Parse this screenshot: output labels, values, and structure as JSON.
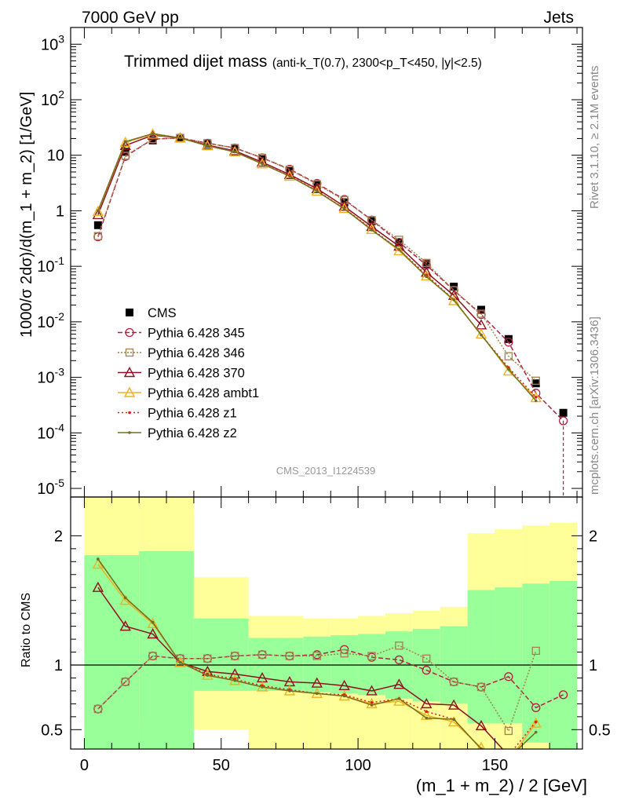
{
  "header": {
    "left": "7000 GeV pp",
    "right": "Jets"
  },
  "side_labels": {
    "rivet": "Rivet 3.1.10, ≥ 2.1M events",
    "mcplots": "mcplots.cern.ch [arXiv:1306.3436]"
  },
  "chart_data": [
    {
      "type": "scatter",
      "title_main": "Trimmed dijet mass",
      "title_sub": "(anti-k_T(0.7), 2300<p_T<450, |y|<2.5)",
      "ylabel": "1000/σ 2dσ)/d(m_1 + m_2) [1/GeV]",
      "xlabel": "(m_1 + m_2) / 2 [GeV]",
      "watermark": "CMS_2013_I1224539",
      "xlim": [
        -5,
        182
      ],
      "ylim": [
        7e-06,
        2000
      ],
      "log_y": true,
      "y_ticks": [
        "10^-5",
        "10^-4",
        "10^-3",
        "10^-2",
        "10^-1",
        "1",
        "10",
        "10^2",
        "10^3"
      ],
      "x": [
        5,
        15,
        25,
        35,
        45,
        55,
        65,
        75,
        85,
        95,
        105,
        115,
        125,
        135,
        145,
        155,
        165,
        175
      ],
      "series": [
        {
          "name": "CMS",
          "color": "#000000",
          "marker": "square",
          "dash": "none",
          "values": [
            0.55,
            11.5,
            18.5,
            20,
            16,
            13,
            8.5,
            5.2,
            2.9,
            1.42,
            0.65,
            0.27,
            0.11,
            0.043,
            0.0165,
            0.0049,
            0.00078,
            0.00023
          ]
        },
        {
          "name": "Pythia 6.428 345",
          "color": "#b02040",
          "marker": "circle",
          "dash": "6,3",
          "values": [
            0.34,
            9.5,
            19.5,
            20.5,
            16.5,
            13.5,
            9,
            5.6,
            3.1,
            1.6,
            0.68,
            0.27,
            0.105,
            0.037,
            0.0135,
            0.0043,
            0.00052,
            0.000165
          ]
        },
        {
          "name": "Pythia 6.428 346",
          "color": "#a08050",
          "marker": "square-open",
          "dash": "2,2",
          "values": [
            0.35,
            9.8,
            19.5,
            20.5,
            16.5,
            13.5,
            9,
            5.5,
            3.0,
            1.55,
            0.68,
            0.3,
            0.115,
            0.037,
            0.014,
            0.0024,
            0.00087,
            null
          ]
        },
        {
          "name": "Pythia 6.428 370",
          "color": "#901020",
          "marker": "triangle",
          "dash": "none",
          "values": [
            0.85,
            15,
            23,
            20.5,
            15.2,
            12,
            7.5,
            4.5,
            2.5,
            1.2,
            0.52,
            0.23,
            0.078,
            0.03,
            0.0088,
            null,
            null,
            null
          ]
        },
        {
          "name": "Pythia 6.428 ambt1",
          "color": "#f0b020",
          "marker": "triangle-open",
          "dash": "none",
          "values": [
            0.97,
            17,
            24,
            20.5,
            14.8,
            11.5,
            7.0,
            4.2,
            2.25,
            1.1,
            0.46,
            0.19,
            0.067,
            0.024,
            0.006,
            0.0013,
            0.00043,
            null
          ]
        },
        {
          "name": "Pythia 6.428 z1",
          "color": "#e02020",
          "marker": "dot",
          "dash": "2,3",
          "values": [
            1.0,
            17.5,
            24.5,
            20.5,
            14.8,
            11.5,
            7.0,
            4.3,
            2.3,
            1.1,
            0.47,
            0.2,
            0.07,
            0.025,
            0.0058,
            0.0015,
            0.00044,
            null
          ]
        },
        {
          "name": "Pythia 6.428 z2",
          "color": "#707020",
          "marker": "dot",
          "dash": "none",
          "values": [
            1.0,
            17.5,
            24.5,
            20.5,
            14.8,
            11.5,
            7.0,
            4.2,
            2.25,
            1.08,
            0.45,
            0.2,
            0.065,
            0.025,
            0.0058,
            0.0014,
            0.00038,
            null
          ]
        }
      ]
    },
    {
      "type": "line",
      "ylabel": "Ratio to CMS",
      "xlim": [
        -5,
        182
      ],
      "ylim": [
        0.35,
        2.3
      ],
      "x_ticks": [
        0,
        50,
        100,
        150
      ],
      "y_ticks": [
        0.5,
        1,
        2
      ],
      "bands": {
        "edges": [
          0,
          20,
          40,
          60,
          80,
          90,
          100,
          110,
          120,
          130,
          140,
          150,
          160,
          170,
          180
        ],
        "green_low": [
          0.35,
          0.35,
          0.8,
          0.8,
          0.79,
          0.78,
          0.77,
          0.74,
          0.72,
          0.7,
          0.55,
          0.55,
          0.4,
          0.35
        ],
        "green_high": [
          1.85,
          1.88,
          1.36,
          1.21,
          1.22,
          1.23,
          1.24,
          1.26,
          1.28,
          1.3,
          1.58,
          1.6,
          1.63,
          1.65
        ],
        "yellow_low": [
          0.35,
          0.58,
          0.5,
          0.35,
          0.35,
          0.35,
          0.35,
          0.35,
          0.35,
          0.35,
          0.35,
          0.35,
          0.35,
          0.35
        ],
        "yellow_high": [
          2.3,
          2.3,
          1.68,
          1.38,
          1.36,
          1.36,
          1.38,
          1.4,
          1.42,
          1.45,
          2.02,
          2.05,
          2.08,
          2.1
        ]
      },
      "series": [
        {
          "name": "Pythia 6.428 345",
          "values": [
            0.66,
            0.87,
            1.07,
            1.05,
            1.05,
            1.07,
            1.08,
            1.07,
            1.08,
            1.12,
            1.06,
            1.04,
            0.96,
            0.87,
            0.83,
            0.91,
            0.67,
            0.77
          ]
        },
        {
          "name": "Pythia 6.428 346",
          "values": [
            0.66,
            0.87,
            1.07,
            1.05,
            1.05,
            1.07,
            1.08,
            1.07,
            1.07,
            1.09,
            1.07,
            1.15,
            1.05,
            0.87,
            0.83,
            0.49,
            1.11,
            null
          ]
        },
        {
          "name": "Pythia 6.428 370",
          "values": [
            1.6,
            1.3,
            1.24,
            1.02,
            0.95,
            0.93,
            0.9,
            0.87,
            0.86,
            0.84,
            0.8,
            0.85,
            0.7,
            0.69,
            0.53,
            0.3,
            null,
            null
          ]
        },
        {
          "name": "Pythia 6.428 ambt1",
          "values": [
            1.78,
            1.5,
            1.32,
            1.02,
            0.92,
            0.88,
            0.83,
            0.8,
            0.78,
            0.76,
            0.7,
            0.72,
            0.61,
            0.56,
            0.36,
            0.26,
            0.55,
            null
          ]
        },
        {
          "name": "Pythia 6.428 z1",
          "values": [
            1.82,
            1.52,
            1.33,
            1.02,
            0.93,
            0.89,
            0.84,
            0.81,
            0.78,
            0.77,
            0.71,
            0.74,
            0.64,
            0.58,
            0.35,
            0.3,
            0.56,
            null
          ]
        },
        {
          "name": "Pythia 6.428 z2",
          "values": [
            1.82,
            1.52,
            1.33,
            1.02,
            0.92,
            0.88,
            0.83,
            0.8,
            0.78,
            0.76,
            0.69,
            0.74,
            0.59,
            0.58,
            0.35,
            0.28,
            0.48,
            null
          ]
        }
      ]
    }
  ]
}
